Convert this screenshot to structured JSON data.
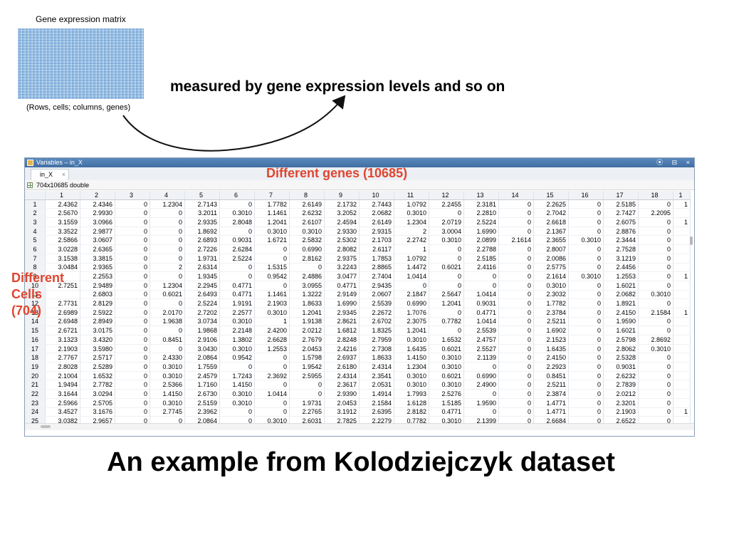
{
  "thumbnail": {
    "title": "Gene expression matrix",
    "caption": "(Rows, cells; columns, genes)"
  },
  "arrow_text": "measured by gene expression levels and so on",
  "window": {
    "title": "Variables – in_X",
    "controls": [
      "⦿",
      "⊟",
      "×"
    ],
    "tab_label": "in_X",
    "tab_close": "×",
    "info": "704x10685 double",
    "column_headers": [
      "1",
      "2",
      "3",
      "4",
      "5",
      "6",
      "7",
      "8",
      "9",
      "10",
      "11",
      "12",
      "13",
      "14",
      "15",
      "16",
      "17",
      "18",
      "1"
    ],
    "rows": [
      [
        "1",
        "2.4362",
        "2.4346",
        "0",
        "1.2304",
        "2.7143",
        "0",
        "1.7782",
        "2.6149",
        "2.1732",
        "2.7443",
        "1.0792",
        "2.2455",
        "2.3181",
        "0",
        "2.2625",
        "0",
        "2.5185",
        "0",
        "1"
      ],
      [
        "2",
        "2.5670",
        "2.9930",
        "0",
        "0",
        "3.2011",
        "0.3010",
        "1.1461",
        "2.6232",
        "3.2052",
        "2.0682",
        "0.3010",
        "0",
        "2.2810",
        "0",
        "2.7042",
        "0",
        "2.7427",
        "2.2095",
        ""
      ],
      [
        "3",
        "3.1559",
        "3.0966",
        "0",
        "0",
        "2.9335",
        "2.8048",
        "1.2041",
        "2.6107",
        "2.4594",
        "2.6149",
        "1.2304",
        "2.0719",
        "2.5224",
        "0",
        "2.6618",
        "0",
        "2.6075",
        "0",
        "1"
      ],
      [
        "4",
        "3.3522",
        "2.9877",
        "0",
        "0",
        "1.8692",
        "0",
        "0.3010",
        "0.3010",
        "2.9330",
        "2.9315",
        "2",
        "3.0004",
        "1.6990",
        "0",
        "2.1367",
        "0",
        "2.8876",
        "0",
        ""
      ],
      [
        "5",
        "2.5866",
        "3.0607",
        "0",
        "0",
        "2.6893",
        "0.9031",
        "1.6721",
        "2.5832",
        "2.5302",
        "2.1703",
        "2.2742",
        "0.3010",
        "2.0899",
        "2.1614",
        "2.3655",
        "0.3010",
        "2.3444",
        "0",
        ""
      ],
      [
        "6",
        "3.0228",
        "2.6365",
        "0",
        "0",
        "2.7226",
        "2.6284",
        "0",
        "0.6990",
        "2.8082",
        "2.6117",
        "1",
        "0",
        "2.2788",
        "0",
        "2.8007",
        "0",
        "2.7528",
        "0",
        ""
      ],
      [
        "7",
        "3.1538",
        "3.3815",
        "0",
        "0",
        "1.9731",
        "2.5224",
        "0",
        "2.8162",
        "2.9375",
        "1.7853",
        "1.0792",
        "0",
        "2.5185",
        "0",
        "2.0086",
        "0",
        "3.1219",
        "0",
        ""
      ],
      [
        "8",
        "3.0484",
        "2.9365",
        "0",
        "2",
        "2.6314",
        "0",
        "1.5315",
        "0",
        "3.2243",
        "2.8865",
        "1.4472",
        "0.6021",
        "2.4116",
        "0",
        "2.5775",
        "0",
        "2.4456",
        "0",
        ""
      ],
      [
        "9",
        "",
        "2.2553",
        "0",
        "0",
        "1.9345",
        "0",
        "0.9542",
        "2.4886",
        "3.0477",
        "2.7404",
        "1.0414",
        "0",
        "0",
        "0",
        "2.1614",
        "0.3010",
        "1.2553",
        "0",
        "1"
      ],
      [
        "10",
        "2.7251",
        "2.9489",
        "0",
        "1.2304",
        "2.2945",
        "0.4771",
        "0",
        "3.0955",
        "0.4771",
        "2.9435",
        "0",
        "0",
        "0",
        "0",
        "0.3010",
        "0",
        "1.6021",
        "0",
        ""
      ],
      [
        "11",
        "",
        "2.6803",
        "0",
        "0.6021",
        "2.6493",
        "0.4771",
        "1.1461",
        "1.3222",
        "2.9149",
        "2.0607",
        "2.1847",
        "2.5647",
        "1.0414",
        "0",
        "2.3032",
        "0",
        "2.0682",
        "0.3010",
        ""
      ],
      [
        "12",
        "2.7731",
        "2.8129",
        "0",
        "0",
        "2.5224",
        "1.9191",
        "2.1903",
        "1.8633",
        "1.6990",
        "2.5539",
        "0.6990",
        "1.2041",
        "0.9031",
        "0",
        "1.7782",
        "0",
        "1.8921",
        "0",
        ""
      ],
      [
        "13",
        "2.6989",
        "2.5922",
        "0",
        "2.0170",
        "2.7202",
        "2.2577",
        "0.3010",
        "1.2041",
        "2.9345",
        "2.2672",
        "1.7076",
        "0",
        "0.4771",
        "0",
        "2.3784",
        "0",
        "2.4150",
        "2.1584",
        "1"
      ],
      [
        "14",
        "2.6948",
        "2.8949",
        "0",
        "1.9638",
        "3.0734",
        "0.3010",
        "1",
        "1.9138",
        "2.8621",
        "2.6702",
        "2.3075",
        "0.7782",
        "1.0414",
        "0",
        "2.5211",
        "0",
        "1.9590",
        "0",
        ""
      ],
      [
        "15",
        "2.6721",
        "3.0175",
        "0",
        "0",
        "1.9868",
        "2.2148",
        "2.4200",
        "2.0212",
        "1.6812",
        "1.8325",
        "1.2041",
        "0",
        "2.5539",
        "0",
        "1.6902",
        "0",
        "1.6021",
        "0",
        ""
      ],
      [
        "16",
        "3.1323",
        "3.4320",
        "0",
        "0.8451",
        "2.9106",
        "1.3802",
        "2.6628",
        "2.7679",
        "2.8248",
        "2.7959",
        "0.3010",
        "1.6532",
        "2.4757",
        "0",
        "2.1523",
        "0",
        "2.5798",
        "2.8692",
        ""
      ],
      [
        "17",
        "2.1903",
        "3.5980",
        "0",
        "0",
        "3.0430",
        "0.3010",
        "1.2553",
        "2.0453",
        "2.4216",
        "2.7308",
        "1.6435",
        "0.6021",
        "2.5527",
        "0",
        "1.6435",
        "0",
        "2.8062",
        "0.3010",
        ""
      ],
      [
        "18",
        "2.7767",
        "2.5717",
        "0",
        "2.4330",
        "2.0864",
        "0.9542",
        "0",
        "1.5798",
        "2.6937",
        "1.8633",
        "1.4150",
        "0.3010",
        "2.1139",
        "0",
        "2.4150",
        "0",
        "2.5328",
        "0",
        ""
      ],
      [
        "19",
        "2.8028",
        "2.5289",
        "0",
        "0.3010",
        "1.7559",
        "0",
        "0",
        "1.9542",
        "2.6180",
        "2.4314",
        "1.2304",
        "0.3010",
        "0",
        "0",
        "2.2923",
        "0",
        "0.9031",
        "0",
        ""
      ],
      [
        "20",
        "2.1004",
        "1.6532",
        "0",
        "0.3010",
        "2.4579",
        "1.7243",
        "2.3692",
        "2.5955",
        "2.4314",
        "2.3541",
        "0.3010",
        "0.6021",
        "0.6990",
        "0",
        "0.8451",
        "0",
        "2.6232",
        "0",
        ""
      ],
      [
        "21",
        "1.9494",
        "2.7782",
        "0",
        "2.5366",
        "1.7160",
        "1.4150",
        "0",
        "0",
        "2.3617",
        "2.0531",
        "0.3010",
        "0.3010",
        "2.4900",
        "0",
        "2.5211",
        "0",
        "2.7839",
        "0",
        ""
      ],
      [
        "22",
        "3.1644",
        "3.0294",
        "0",
        "1.4150",
        "2.6730",
        "0.3010",
        "1.0414",
        "0",
        "2.9390",
        "1.4914",
        "1.7993",
        "2.5276",
        "0",
        "0",
        "2.3874",
        "0",
        "2.0212",
        "0",
        ""
      ],
      [
        "23",
        "2.5966",
        "2.5705",
        "0",
        "0.3010",
        "2.5159",
        "0.3010",
        "0",
        "1.9731",
        "2.0453",
        "2.1584",
        "1.6128",
        "1.5185",
        "1.9590",
        "0",
        "1.4771",
        "0",
        "2.3201",
        "0",
        ""
      ],
      [
        "24",
        "3.4527",
        "3.1676",
        "0",
        "2.7745",
        "2.3962",
        "0",
        "0",
        "2.2765",
        "3.1912",
        "2.6395",
        "2.8182",
        "0.4771",
        "0",
        "0",
        "1.4771",
        "0",
        "2.1903",
        "0",
        "1"
      ],
      [
        "25",
        "3.0382",
        "2.9657",
        "0",
        "0",
        "2.0864",
        "0",
        "0.3010",
        "2.6031",
        "2.7825",
        "2.2279",
        "0.7782",
        "0.3010",
        "2.1399",
        "0",
        "2.6684",
        "0",
        "2.6522",
        "0",
        ""
      ]
    ]
  },
  "labels": {
    "genes": "Different genes (10685)",
    "cells_lines": [
      "Different",
      "Cells",
      "(704)"
    ]
  },
  "caption": "An example from Kolodziejczyk dataset",
  "colors": {
    "accent_red": "#e0452f",
    "titlebar_blue": "#4a7ab0"
  }
}
